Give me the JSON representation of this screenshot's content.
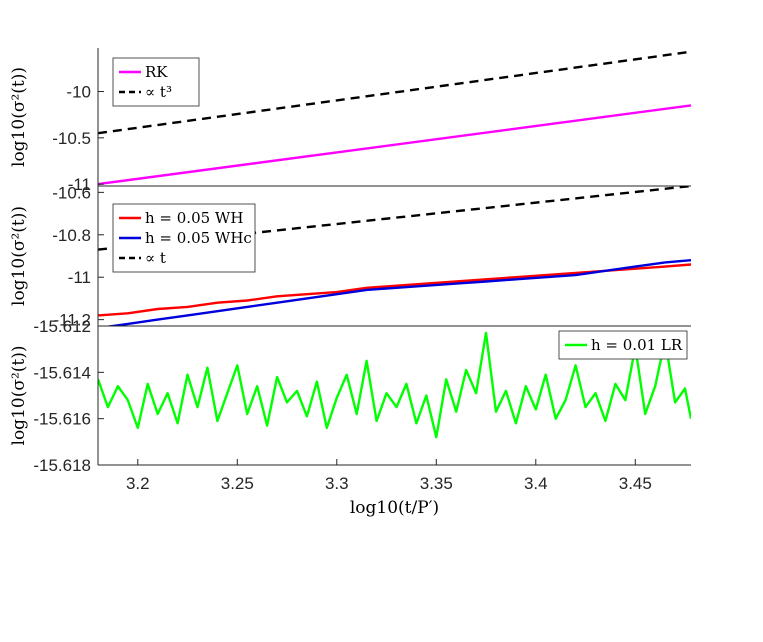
{
  "chart_data": [
    {
      "type": "line",
      "ylabel": "log10(σ²(t))",
      "ylim": [
        -11.02,
        -9.53
      ],
      "yticks": [
        "-11",
        "-10.5",
        "-10"
      ],
      "ytick_values": [
        -11,
        -10.5,
        -10
      ],
      "xlim": [
        3.18,
        3.478
      ],
      "legend_position": "top-left",
      "series": [
        {
          "name": "RK",
          "color": "#ff00ff",
          "style": "solid",
          "x": [
            3.18,
            3.478
          ],
          "y": [
            -11.0,
            -10.15
          ]
        },
        {
          "name": "∝ t³",
          "color": "#000000",
          "style": "dashed",
          "x": [
            3.18,
            3.478
          ],
          "y": [
            -10.45,
            -9.57
          ]
        }
      ]
    },
    {
      "type": "line",
      "ylabel": "log10(σ²(t))",
      "ylim": [
        -11.23,
        -10.57
      ],
      "yticks": [
        "-11.2",
        "-11",
        "-10.8",
        "-10.6"
      ],
      "ytick_values": [
        -11.2,
        -11,
        -10.8,
        -10.6
      ],
      "xlim": [
        3.18,
        3.478
      ],
      "legend_position": "top-left",
      "series": [
        {
          "name": "h = 0.05 WH",
          "color": "#ff0000",
          "style": "solid",
          "x": [
            3.18,
            3.195,
            3.21,
            3.225,
            3.24,
            3.255,
            3.27,
            3.285,
            3.3,
            3.315,
            3.33,
            3.345,
            3.36,
            3.375,
            3.39,
            3.405,
            3.42,
            3.435,
            3.45,
            3.465,
            3.478
          ],
          "y": [
            -11.18,
            -11.17,
            -11.15,
            -11.14,
            -11.12,
            -11.11,
            -11.09,
            -11.08,
            -11.07,
            -11.05,
            -11.04,
            -11.03,
            -11.02,
            -11.01,
            -11.0,
            -10.99,
            -10.98,
            -10.97,
            -10.96,
            -10.95,
            -10.94
          ]
        },
        {
          "name": "h = 0.05 WHc",
          "color": "#0000dd",
          "style": "solid",
          "x": [
            3.18,
            3.195,
            3.21,
            3.225,
            3.24,
            3.255,
            3.27,
            3.285,
            3.3,
            3.315,
            3.33,
            3.345,
            3.36,
            3.375,
            3.39,
            3.405,
            3.42,
            3.435,
            3.45,
            3.465,
            3.478
          ],
          "y": [
            -11.24,
            -11.22,
            -11.2,
            -11.18,
            -11.16,
            -11.14,
            -11.12,
            -11.1,
            -11.08,
            -11.06,
            -11.05,
            -11.04,
            -11.03,
            -11.02,
            -11.01,
            -11.0,
            -10.99,
            -10.97,
            -10.95,
            -10.93,
            -10.92
          ]
        },
        {
          "name": "∝ t",
          "color": "#000000",
          "style": "dashed",
          "x": [
            3.18,
            3.478
          ],
          "y": [
            -10.87,
            -10.57
          ]
        }
      ]
    },
    {
      "type": "line",
      "xlabel": "log10(t/P′)",
      "ylabel": "log10(σ²(t))",
      "ylim": [
        -15.618,
        -15.612
      ],
      "yticks": [
        "-15.618",
        "-15.616",
        "-15.614",
        "-15.612"
      ],
      "ytick_values": [
        -15.618,
        -15.616,
        -15.614,
        -15.612
      ],
      "xlim": [
        3.18,
        3.478
      ],
      "xticks": [
        "3.2",
        "3.25",
        "3.3",
        "3.35",
        "3.4",
        "3.45"
      ],
      "xtick_values": [
        3.2,
        3.25,
        3.3,
        3.35,
        3.4,
        3.45
      ],
      "legend_position": "top-right",
      "series": [
        {
          "name": "h = 0.01 LR",
          "color": "#00ff00",
          "style": "solid",
          "x": [
            3.18,
            3.185,
            3.19,
            3.195,
            3.2,
            3.205,
            3.21,
            3.215,
            3.22,
            3.225,
            3.23,
            3.235,
            3.24,
            3.245,
            3.25,
            3.255,
            3.26,
            3.265,
            3.27,
            3.275,
            3.28,
            3.285,
            3.29,
            3.295,
            3.3,
            3.305,
            3.31,
            3.315,
            3.32,
            3.325,
            3.33,
            3.335,
            3.34,
            3.345,
            3.35,
            3.355,
            3.36,
            3.365,
            3.37,
            3.375,
            3.38,
            3.385,
            3.39,
            3.395,
            3.4,
            3.405,
            3.41,
            3.415,
            3.42,
            3.425,
            3.43,
            3.435,
            3.44,
            3.445,
            3.45,
            3.455,
            3.46,
            3.465,
            3.47,
            3.475,
            3.478
          ],
          "y": [
            -15.6143,
            -15.6155,
            -15.6146,
            -15.6152,
            -15.6164,
            -15.6145,
            -15.6158,
            -15.6149,
            -15.6162,
            -15.6141,
            -15.6155,
            -15.6138,
            -15.6161,
            -15.6149,
            -15.6137,
            -15.6158,
            -15.6146,
            -15.6163,
            -15.6142,
            -15.6153,
            -15.6148,
            -15.6159,
            -15.6144,
            -15.6164,
            -15.6151,
            -15.6141,
            -15.6158,
            -15.6135,
            -15.6161,
            -15.6149,
            -15.6155,
            -15.6145,
            -15.6162,
            -15.615,
            -15.6168,
            -15.6143,
            -15.6157,
            -15.6139,
            -15.6149,
            -15.6123,
            -15.6157,
            -15.6148,
            -15.6162,
            -15.6146,
            -15.6156,
            -15.6141,
            -15.616,
            -15.6152,
            -15.6137,
            -15.6155,
            -15.6149,
            -15.6161,
            -15.6145,
            -15.6152,
            -15.6129,
            -15.6158,
            -15.6146,
            -15.6126,
            -15.6153,
            -15.6147,
            -15.616
          ]
        }
      ]
    }
  ]
}
